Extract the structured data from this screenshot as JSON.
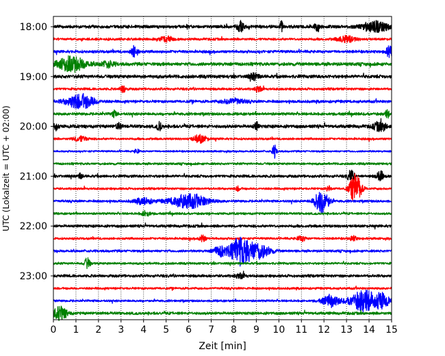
{
  "chart_data": {
    "type": "line",
    "title": "",
    "xlabel": "Zeit  [min]",
    "ylabel": "UTC (Lokalzeit = UTC + 02:00)",
    "xlim": [
      0,
      15
    ],
    "x_ticks": [
      "0",
      "1",
      "2",
      "3",
      "4",
      "5",
      "6",
      "7",
      "8",
      "9",
      "10",
      "11",
      "12",
      "13",
      "14",
      "15"
    ],
    "y_ticks": [
      "18:00",
      "19:00",
      "20:00",
      "21:00",
      "22:00",
      "23:00"
    ],
    "grid": "vertical-dotted",
    "trace_interval_min": 15,
    "start_time": "18:00",
    "colors": [
      "#000000",
      "#ff0000",
      "#0000ff",
      "#008000"
    ],
    "traces": [
      {
        "time": "18:00",
        "color": "#000000",
        "noise": 0.28,
        "events": [
          {
            "t": 8.3,
            "amp": 1.0,
            "width": 0.15
          },
          {
            "t": 10.1,
            "amp": 1.1,
            "width": 0.08
          },
          {
            "t": 11.7,
            "amp": 0.9,
            "width": 0.12
          },
          {
            "t": 14.3,
            "amp": 1.0,
            "width": 0.6
          }
        ]
      },
      {
        "time": "18:15",
        "color": "#ff0000",
        "noise": 0.22,
        "events": [
          {
            "t": 5.0,
            "amp": 0.5,
            "width": 0.3
          },
          {
            "t": 13.0,
            "amp": 0.6,
            "width": 0.4
          }
        ]
      },
      {
        "time": "18:30",
        "color": "#0000ff",
        "noise": 0.25,
        "events": [
          {
            "t": 3.6,
            "amp": 1.1,
            "width": 0.15
          },
          {
            "t": 14.9,
            "amp": 1.2,
            "width": 0.15
          }
        ]
      },
      {
        "time": "18:45",
        "color": "#008000",
        "noise": 0.3,
        "events": [
          {
            "t": 0.8,
            "amp": 1.5,
            "width": 0.6
          },
          {
            "t": 2.4,
            "amp": 0.6,
            "width": 0.3
          }
        ]
      },
      {
        "time": "19:00",
        "color": "#000000",
        "noise": 0.3,
        "events": [
          {
            "t": 8.9,
            "amp": 0.6,
            "width": 0.2
          }
        ]
      },
      {
        "time": "19:15",
        "color": "#ff0000",
        "noise": 0.22,
        "events": [
          {
            "t": 3.1,
            "amp": 0.8,
            "width": 0.12
          },
          {
            "t": 9.1,
            "amp": 0.6,
            "width": 0.15
          }
        ]
      },
      {
        "time": "19:30",
        "color": "#0000ff",
        "noise": 0.25,
        "events": [
          {
            "t": 1.2,
            "amp": 1.5,
            "width": 0.6
          },
          {
            "t": 8.0,
            "amp": 0.5,
            "width": 0.5
          }
        ]
      },
      {
        "time": "19:45",
        "color": "#008000",
        "noise": 0.25,
        "events": [
          {
            "t": 2.7,
            "amp": 0.6,
            "width": 0.12
          },
          {
            "t": 14.8,
            "amp": 0.7,
            "width": 0.1
          }
        ]
      },
      {
        "time": "20:00",
        "color": "#000000",
        "noise": 0.3,
        "events": [
          {
            "t": 0.1,
            "amp": 1.0,
            "width": 0.1
          },
          {
            "t": 2.9,
            "amp": 0.7,
            "width": 0.1
          },
          {
            "t": 4.7,
            "amp": 0.9,
            "width": 0.1
          },
          {
            "t": 9.0,
            "amp": 0.8,
            "width": 0.1
          },
          {
            "t": 14.5,
            "amp": 0.9,
            "width": 0.3
          }
        ]
      },
      {
        "time": "20:15",
        "color": "#ff0000",
        "noise": 0.2,
        "events": [
          {
            "t": 6.5,
            "amp": 0.8,
            "width": 0.3
          },
          {
            "t": 1.2,
            "amp": 0.5,
            "width": 0.3
          }
        ]
      },
      {
        "time": "20:30",
        "color": "#0000ff",
        "noise": 0.16,
        "events": [
          {
            "t": 9.8,
            "amp": 1.3,
            "width": 0.1
          },
          {
            "t": 3.7,
            "amp": 0.5,
            "width": 0.1
          }
        ]
      },
      {
        "time": "20:45",
        "color": "#008000",
        "noise": 0.2,
        "events": []
      },
      {
        "time": "21:00",
        "color": "#000000",
        "noise": 0.25,
        "events": [
          {
            "t": 13.2,
            "amp": 1.1,
            "width": 0.15
          },
          {
            "t": 14.5,
            "amp": 1.0,
            "width": 0.15
          },
          {
            "t": 1.2,
            "amp": 0.5,
            "width": 0.1
          }
        ]
      },
      {
        "time": "21:15",
        "color": "#ff0000",
        "noise": 0.2,
        "events": [
          {
            "t": 13.4,
            "amp": 3.0,
            "width": 0.25
          },
          {
            "t": 12.2,
            "amp": 0.6,
            "width": 0.1
          },
          {
            "t": 8.2,
            "amp": 0.5,
            "width": 0.1
          }
        ]
      },
      {
        "time": "21:30",
        "color": "#0000ff",
        "noise": 0.22,
        "events": [
          {
            "t": 6.0,
            "amp": 1.4,
            "width": 0.8
          },
          {
            "t": 4.0,
            "amp": 0.6,
            "width": 0.4
          },
          {
            "t": 11.9,
            "amp": 2.5,
            "width": 0.3
          }
        ]
      },
      {
        "time": "21:45",
        "color": "#008000",
        "noise": 0.2,
        "events": [
          {
            "t": 4.1,
            "amp": 0.5,
            "width": 0.2
          }
        ]
      },
      {
        "time": "22:00",
        "color": "#000000",
        "noise": 0.25,
        "events": []
      },
      {
        "time": "22:15",
        "color": "#ff0000",
        "noise": 0.2,
        "events": [
          {
            "t": 6.6,
            "amp": 0.7,
            "width": 0.15
          },
          {
            "t": 11.0,
            "amp": 0.5,
            "width": 0.2
          },
          {
            "t": 13.3,
            "amp": 0.5,
            "width": 0.15
          }
        ]
      },
      {
        "time": "22:30",
        "color": "#0000ff",
        "noise": 0.22,
        "events": [
          {
            "t": 8.3,
            "amp": 2.8,
            "width": 0.45
          },
          {
            "t": 9.1,
            "amp": 1.5,
            "width": 0.5
          },
          {
            "t": 7.4,
            "amp": 1.0,
            "width": 0.3
          }
        ]
      },
      {
        "time": "22:45",
        "color": "#008000",
        "noise": 0.2,
        "events": [
          {
            "t": 1.5,
            "amp": 1.1,
            "width": 0.12
          }
        ]
      },
      {
        "time": "23:00",
        "color": "#000000",
        "noise": 0.25,
        "events": [
          {
            "t": 8.3,
            "amp": 0.5,
            "width": 0.2
          }
        ]
      },
      {
        "time": "23:15",
        "color": "#ff0000",
        "noise": 0.2,
        "events": []
      },
      {
        "time": "23:30",
        "color": "#0000ff",
        "noise": 0.2,
        "events": [
          {
            "t": 13.8,
            "amp": 2.2,
            "width": 0.6
          },
          {
            "t": 12.3,
            "amp": 1.0,
            "width": 0.4
          },
          {
            "t": 14.6,
            "amp": 1.2,
            "width": 0.3
          }
        ]
      },
      {
        "time": "23:45",
        "color": "#008000",
        "noise": 0.25,
        "events": [
          {
            "t": 0.3,
            "amp": 1.3,
            "width": 0.3
          }
        ]
      }
    ]
  }
}
